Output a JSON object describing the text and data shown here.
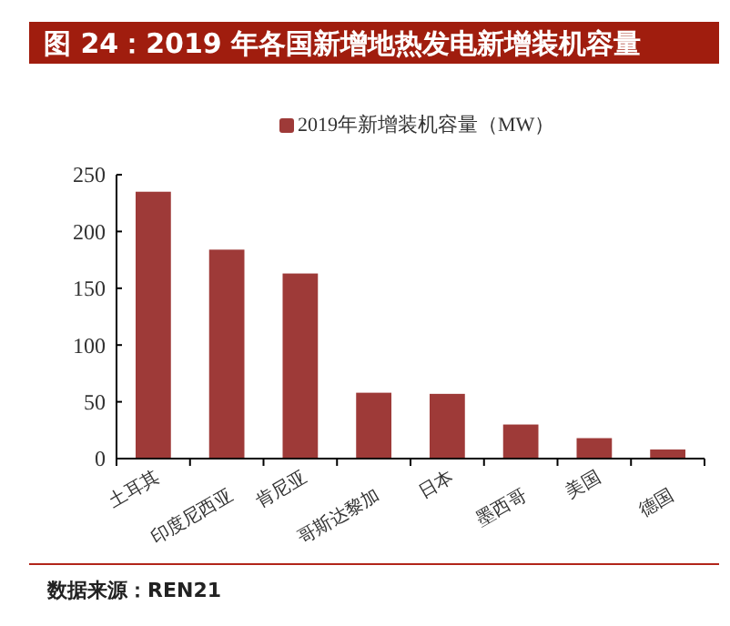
{
  "chart_data": {
    "type": "bar",
    "title": "图 24：2019 年各国新增地热发电新增装机容量",
    "categories": [
      "土耳其",
      "印度尼西亚",
      "肯尼亚",
      "哥斯达黎加",
      "日本",
      "墨西哥",
      "美国",
      "德国"
    ],
    "series": [
      {
        "name": "2019年新增装机容量（MW）",
        "color": "#9e3a38",
        "values": [
          235,
          184,
          163,
          58,
          57,
          30,
          18,
          8
        ]
      }
    ],
    "ylim": [
      0,
      250
    ],
    "yticks": [
      0,
      50,
      100,
      150,
      200,
      250
    ],
    "grid": false,
    "legend": "top",
    "annotations": [
      "数据来源：REN21"
    ]
  }
}
